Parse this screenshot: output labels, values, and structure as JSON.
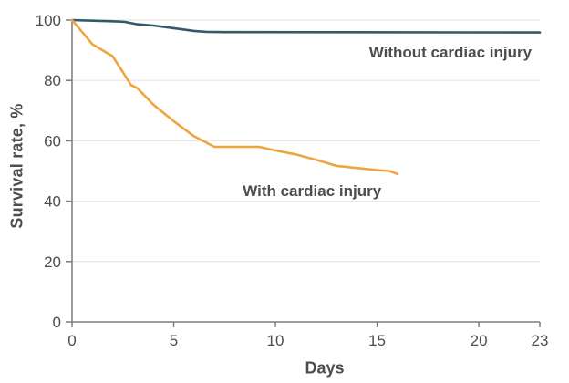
{
  "figure": {
    "background": "#ffffff",
    "text_color": "#4d4d4d",
    "grid_color": "#e4e4e4",
    "axis_color": "#7c7c7c"
  },
  "chart_data": {
    "type": "line",
    "title": "",
    "xlabel": "Days",
    "ylabel": "Survival rate, %",
    "xlim": [
      0,
      23
    ],
    "ylim": [
      0,
      100
    ],
    "x_ticks": [
      0,
      5,
      10,
      15,
      20,
      23
    ],
    "y_ticks": [
      0,
      20,
      40,
      60,
      80,
      100
    ],
    "grid": "horizontal-only",
    "legend_position": "inline-annotations",
    "series": [
      {
        "name": "Without cardiac injury",
        "color": "#335a6b",
        "x": [
          0,
          1,
          2,
          2.6,
          3.2,
          4,
          5,
          6,
          6.6,
          7.5,
          23
        ],
        "y": [
          100,
          99.8,
          99.6,
          99.4,
          98.6,
          98.2,
          97.3,
          96.4,
          96.1,
          96,
          95.9
        ]
      },
      {
        "name": "With cardiac injury",
        "color": "#efa43e",
        "x": [
          0,
          0.5,
          1,
          2,
          2.9,
          3.2,
          4,
          5,
          6,
          7,
          8,
          9.2,
          10,
          11,
          12.1,
          13,
          14,
          15,
          15.6,
          16
        ],
        "y": [
          100,
          96,
          92,
          88,
          78.5,
          77.5,
          72,
          66.5,
          61.5,
          58,
          58,
          58,
          56.8,
          55.5,
          53.5,
          51.7,
          51,
          50.3,
          50,
          49
        ]
      }
    ],
    "annotations": [
      {
        "text": "Without cardiac injury",
        "x": 22.6,
        "y": 89.5,
        "align": "right",
        "series": "Without cardiac injury"
      },
      {
        "text": "With cardiac injury",
        "x": 11.8,
        "y": 43.5,
        "align": "center",
        "series": "With cardiac injury"
      }
    ]
  }
}
